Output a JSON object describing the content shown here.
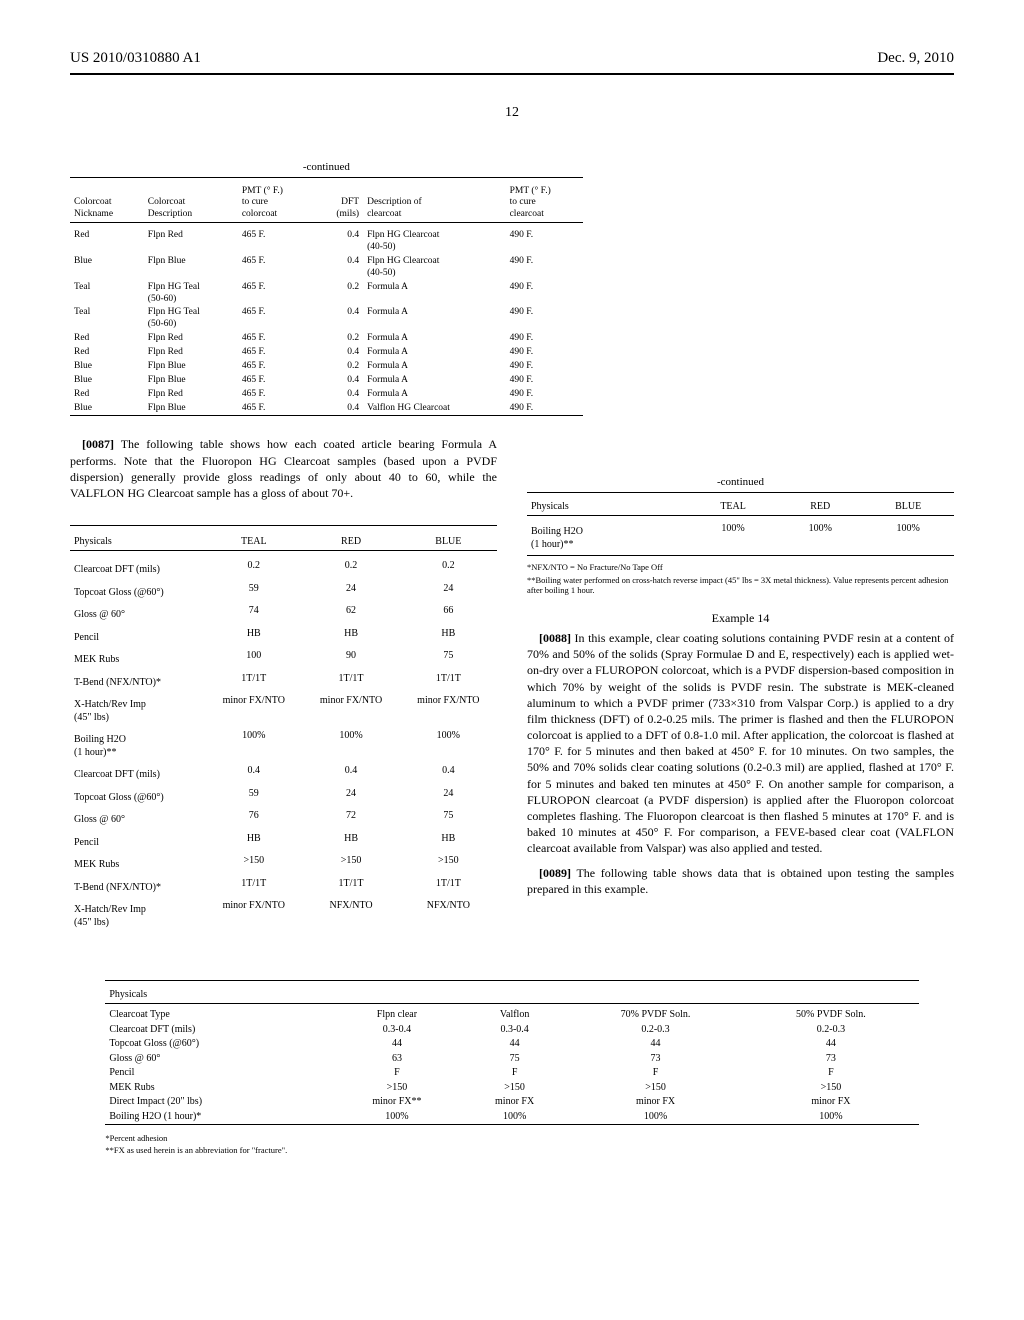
{
  "header": {
    "pub_number": "US 2010/0310880 A1",
    "date": "Dec. 9, 2010",
    "page_number": "12"
  },
  "table1": {
    "continued_label": "-continued",
    "headers": {
      "c1": "Colorcoat\nNickname",
      "c2": "Colorcoat\nDescription",
      "c3": "PMT (° F.)\nto cure\ncolorcoat",
      "c4": "DFT\n(mils)",
      "c5": "Description of\nclearcoat",
      "c6": "PMT (° F.)\nto cure\nclearcoat"
    },
    "rows": [
      {
        "c1": "Red",
        "c2": "Flpn Red",
        "c3": "465 F.",
        "c4": "0.4",
        "c5": "Flpn HG Clearcoat\n(40-50)",
        "c6": "490 F."
      },
      {
        "c1": "Blue",
        "c2": "Flpn Blue",
        "c3": "465 F.",
        "c4": "0.4",
        "c5": "Flpn HG Clearcoat\n(40-50)",
        "c6": "490 F."
      },
      {
        "c1": "Teal",
        "c2": "Flpn HG Teal\n(50-60)",
        "c3": "465 F.",
        "c4": "0.2",
        "c5": "Formula A",
        "c6": "490 F."
      },
      {
        "c1": "Teal",
        "c2": "Flpn HG Teal\n(50-60)",
        "c3": "465 F.",
        "c4": "0.4",
        "c5": "Formula A",
        "c6": "490 F."
      },
      {
        "c1": "Red",
        "c2": "Flpn Red",
        "c3": "465 F.",
        "c4": "0.2",
        "c5": "Formula A",
        "c6": "490 F."
      },
      {
        "c1": "Red",
        "c2": "Flpn Red",
        "c3": "465 F.",
        "c4": "0.4",
        "c5": "Formula A",
        "c6": "490 F."
      },
      {
        "c1": "Blue",
        "c2": "Flpn Blue",
        "c3": "465 F.",
        "c4": "0.2",
        "c5": "Formula A",
        "c6": "490 F."
      },
      {
        "c1": "Blue",
        "c2": "Flpn Blue",
        "c3": "465 F.",
        "c4": "0.4",
        "c5": "Formula A",
        "c6": "490 F."
      },
      {
        "c1": "Red",
        "c2": "Flpn Red",
        "c3": "465 F.",
        "c4": "0.4",
        "c5": "Formula A",
        "c6": "490 F."
      },
      {
        "c1": "Blue",
        "c2": "Flpn Blue",
        "c3": "465 F.",
        "c4": "0.4",
        "c5": "Valflon HG Clearcoat",
        "c6": "490 F."
      }
    ]
  },
  "paras": {
    "p0087_num": "[0087]",
    "p0087": "The following table shows how each coated article bearing Formula A performs. Note that the Fluoropon HG Clearcoat samples (based upon a PVDF dispersion) generally provide gloss readings of only about 40 to 60, while the VALFLON HG Clearcoat sample has a gloss of about 70+.",
    "p0088_num": "[0088]",
    "p0088": "In this example, clear coating solutions containing PVDF resin at a content of 70% and 50% of the solids (Spray Formulae D and E, respectively) each is applied wet-on-dry over a FLUROPON colorcoat, which is a PVDF dispersion-based composition in which 70% by weight of the solids is PVDF resin. The substrate is MEK-cleaned aluminum to which a PVDF primer (733×310 from Valspar Corp.) is applied to a dry film thickness (DFT) of 0.2-0.25 mils. The primer is flashed and then the FLUROPON colorcoat is applied to a DFT of 0.8-1.0 mil. After application, the colorcoat is flashed at 170° F. for 5 minutes and then baked at 450° F. for 10 minutes. On two samples, the 50% and 70% solids clear coating solutions (0.2-0.3 mil) are applied, flashed at 170° F. for 5 minutes and baked ten minutes at 450° F. On another sample for comparison, a FLUROPON clearcoat (a PVDF dispersion) is applied after the Fluoropon colorcoat completes flashing. The Fluoropon clearcoat is then flashed 5 minutes at 170° F. and is baked 10 minutes at 450° F. For comparison, a FEVE-based clear coat (VALFLON clearcoat available from Valspar) was also applied and tested.",
    "p0089_num": "[0089]",
    "p0089": "The following table shows data that is obtained upon testing the samples prepared in this example."
  },
  "table2": {
    "headers": {
      "c1": "Physicals",
      "c2": "TEAL",
      "c3": "RED",
      "c4": "BLUE"
    },
    "rows": [
      {
        "c1": "Clearcoat DFT (mils)",
        "c2": "0.2",
        "c3": "0.2",
        "c4": "0.2"
      },
      {
        "c1": "Topcoat Gloss (@60°)",
        "c2": "59",
        "c3": "24",
        "c4": "24"
      },
      {
        "c1": "Gloss @ 60°",
        "c2": "74",
        "c3": "62",
        "c4": "66"
      },
      {
        "c1": "Pencil",
        "c2": "HB",
        "c3": "HB",
        "c4": "HB"
      },
      {
        "c1": "MEK Rubs",
        "c2": "100",
        "c3": "90",
        "c4": "75"
      },
      {
        "c1": "T-Bend (NFX/NTO)*",
        "c2": "1T/1T",
        "c3": "1T/1T",
        "c4": "1T/1T"
      },
      {
        "c1": "X-Hatch/Rev Imp\n(45\" lbs)",
        "c2": "minor FX/NTO",
        "c3": "minor FX/NTO",
        "c4": "minor FX/NTO"
      },
      {
        "c1": "Boiling H2O\n(1 hour)**",
        "c2": "100%",
        "c3": "100%",
        "c4": "100%"
      },
      {
        "c1": "Clearcoat DFT (mils)",
        "c2": "0.4",
        "c3": "0.4",
        "c4": "0.4"
      },
      {
        "c1": "Topcoat Gloss (@60°)",
        "c2": "59",
        "c3": "24",
        "c4": "24"
      },
      {
        "c1": "Gloss @ 60°",
        "c2": "76",
        "c3": "72",
        "c4": "75"
      },
      {
        "c1": "Pencil",
        "c2": "HB",
        "c3": "HB",
        "c4": "HB"
      },
      {
        "c1": "MEK Rubs",
        "c2": ">150",
        "c3": ">150",
        "c4": ">150"
      },
      {
        "c1": "T-Bend (NFX/NTO)*",
        "c2": "1T/1T",
        "c3": "1T/1T",
        "c4": "1T/1T"
      },
      {
        "c1": "X-Hatch/Rev Imp\n(45\" lbs)",
        "c2": "minor FX/NTO",
        "c3": "NFX/NTO",
        "c4": "NFX/NTO"
      }
    ]
  },
  "table3": {
    "continued_label": "-continued",
    "headers": {
      "c1": "Physicals",
      "c2": "TEAL",
      "c3": "RED",
      "c4": "BLUE"
    },
    "rows": [
      {
        "c1": "Boiling H2O\n(1 hour)**",
        "c2": "100%",
        "c3": "100%",
        "c4": "100%"
      }
    ],
    "foot1": "*NFX/NTO = No Fracture/No Tape Off",
    "foot2": "**Boiling water performed on cross-hatch reverse impact (45\" lbs = 3X metal thickness). Value represents percent adhesion after boiling 1 hour."
  },
  "example14_label": "Example 14",
  "table4": {
    "header_row": "Physicals",
    "sub_rows": [
      {
        "c1": "Clearcoat Type",
        "c2": "Flpn clear",
        "c3": "Valflon",
        "c4": "70% PVDF Soln.",
        "c5": "50% PVDF Soln."
      },
      {
        "c1": "Clearcoat DFT (mils)",
        "c2": "0.3-0.4",
        "c3": "0.3-0.4",
        "c4": "0.2-0.3",
        "c5": "0.2-0.3"
      },
      {
        "c1": "Topcoat Gloss (@60°)",
        "c2": "44",
        "c3": "44",
        "c4": "44",
        "c5": "44"
      },
      {
        "c1": "Gloss @ 60°",
        "c2": "63",
        "c3": "75",
        "c4": "73",
        "c5": "73"
      },
      {
        "c1": "Pencil",
        "c2": "F",
        "c3": "F",
        "c4": "F",
        "c5": "F"
      },
      {
        "c1": "MEK Rubs",
        "c2": ">150",
        "c3": ">150",
        "c4": ">150",
        "c5": ">150"
      },
      {
        "c1": "Direct Impact (20\" lbs)",
        "c2": "minor FX**",
        "c3": "minor FX",
        "c4": "minor FX",
        "c5": "minor FX"
      },
      {
        "c1": "Boiling H2O (1 hour)*",
        "c2": "100%",
        "c3": "100%",
        "c4": "100%",
        "c5": "100%"
      }
    ],
    "foot1": "*Percent adhesion",
    "foot2": "**FX as used herein is an abbreviation for \"fracture\"."
  }
}
